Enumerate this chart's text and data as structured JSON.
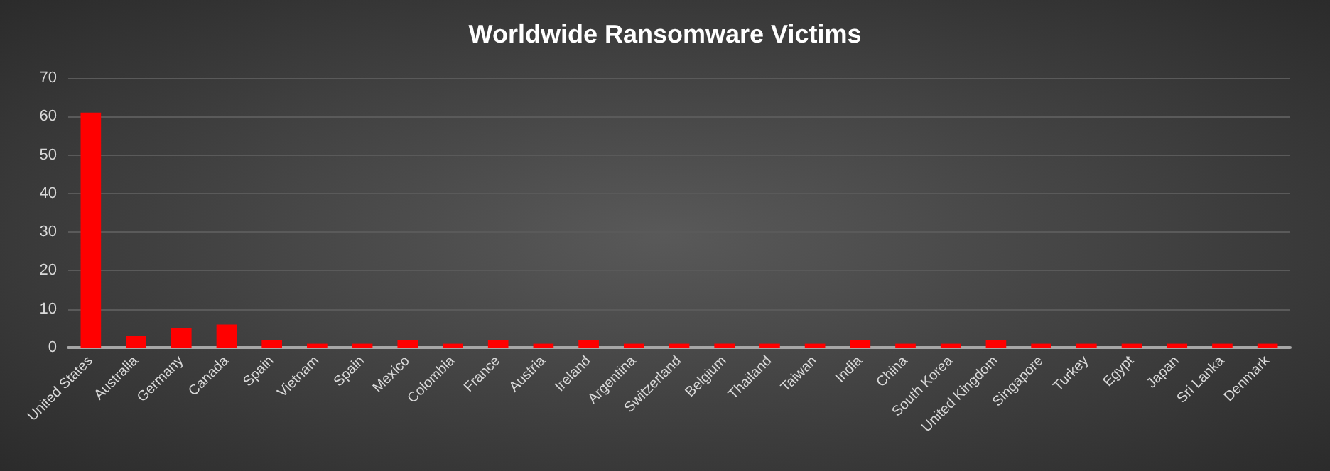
{
  "chart_data": {
    "type": "bar",
    "title": "Worldwide Ransomware Victims",
    "categories": [
      "United States",
      "Australia",
      "Germany",
      "Canada",
      "Spain",
      "Vietnam",
      "Spain",
      "Mexico",
      "Colombia",
      "France",
      "Austria",
      "Ireland",
      "Argentina",
      "Switzerland",
      "Belgium",
      "Thailand",
      "Taiwan",
      "India",
      "China",
      "South Korea",
      "United Kingdom",
      "Singapore",
      "Turkey",
      "Egypt",
      "Japan",
      "Sri Lanka",
      "Denmark"
    ],
    "values": [
      61,
      3,
      5,
      6,
      2,
      1,
      1,
      2,
      1,
      2,
      1,
      2,
      1,
      1,
      1,
      1,
      1,
      2,
      1,
      1,
      2,
      1,
      1,
      1,
      1,
      1,
      1
    ],
    "color": "#ff0000",
    "ylim": [
      0,
      70
    ],
    "yticks": [
      0,
      10,
      20,
      30,
      40,
      50,
      60,
      70
    ],
    "grid": "y"
  }
}
